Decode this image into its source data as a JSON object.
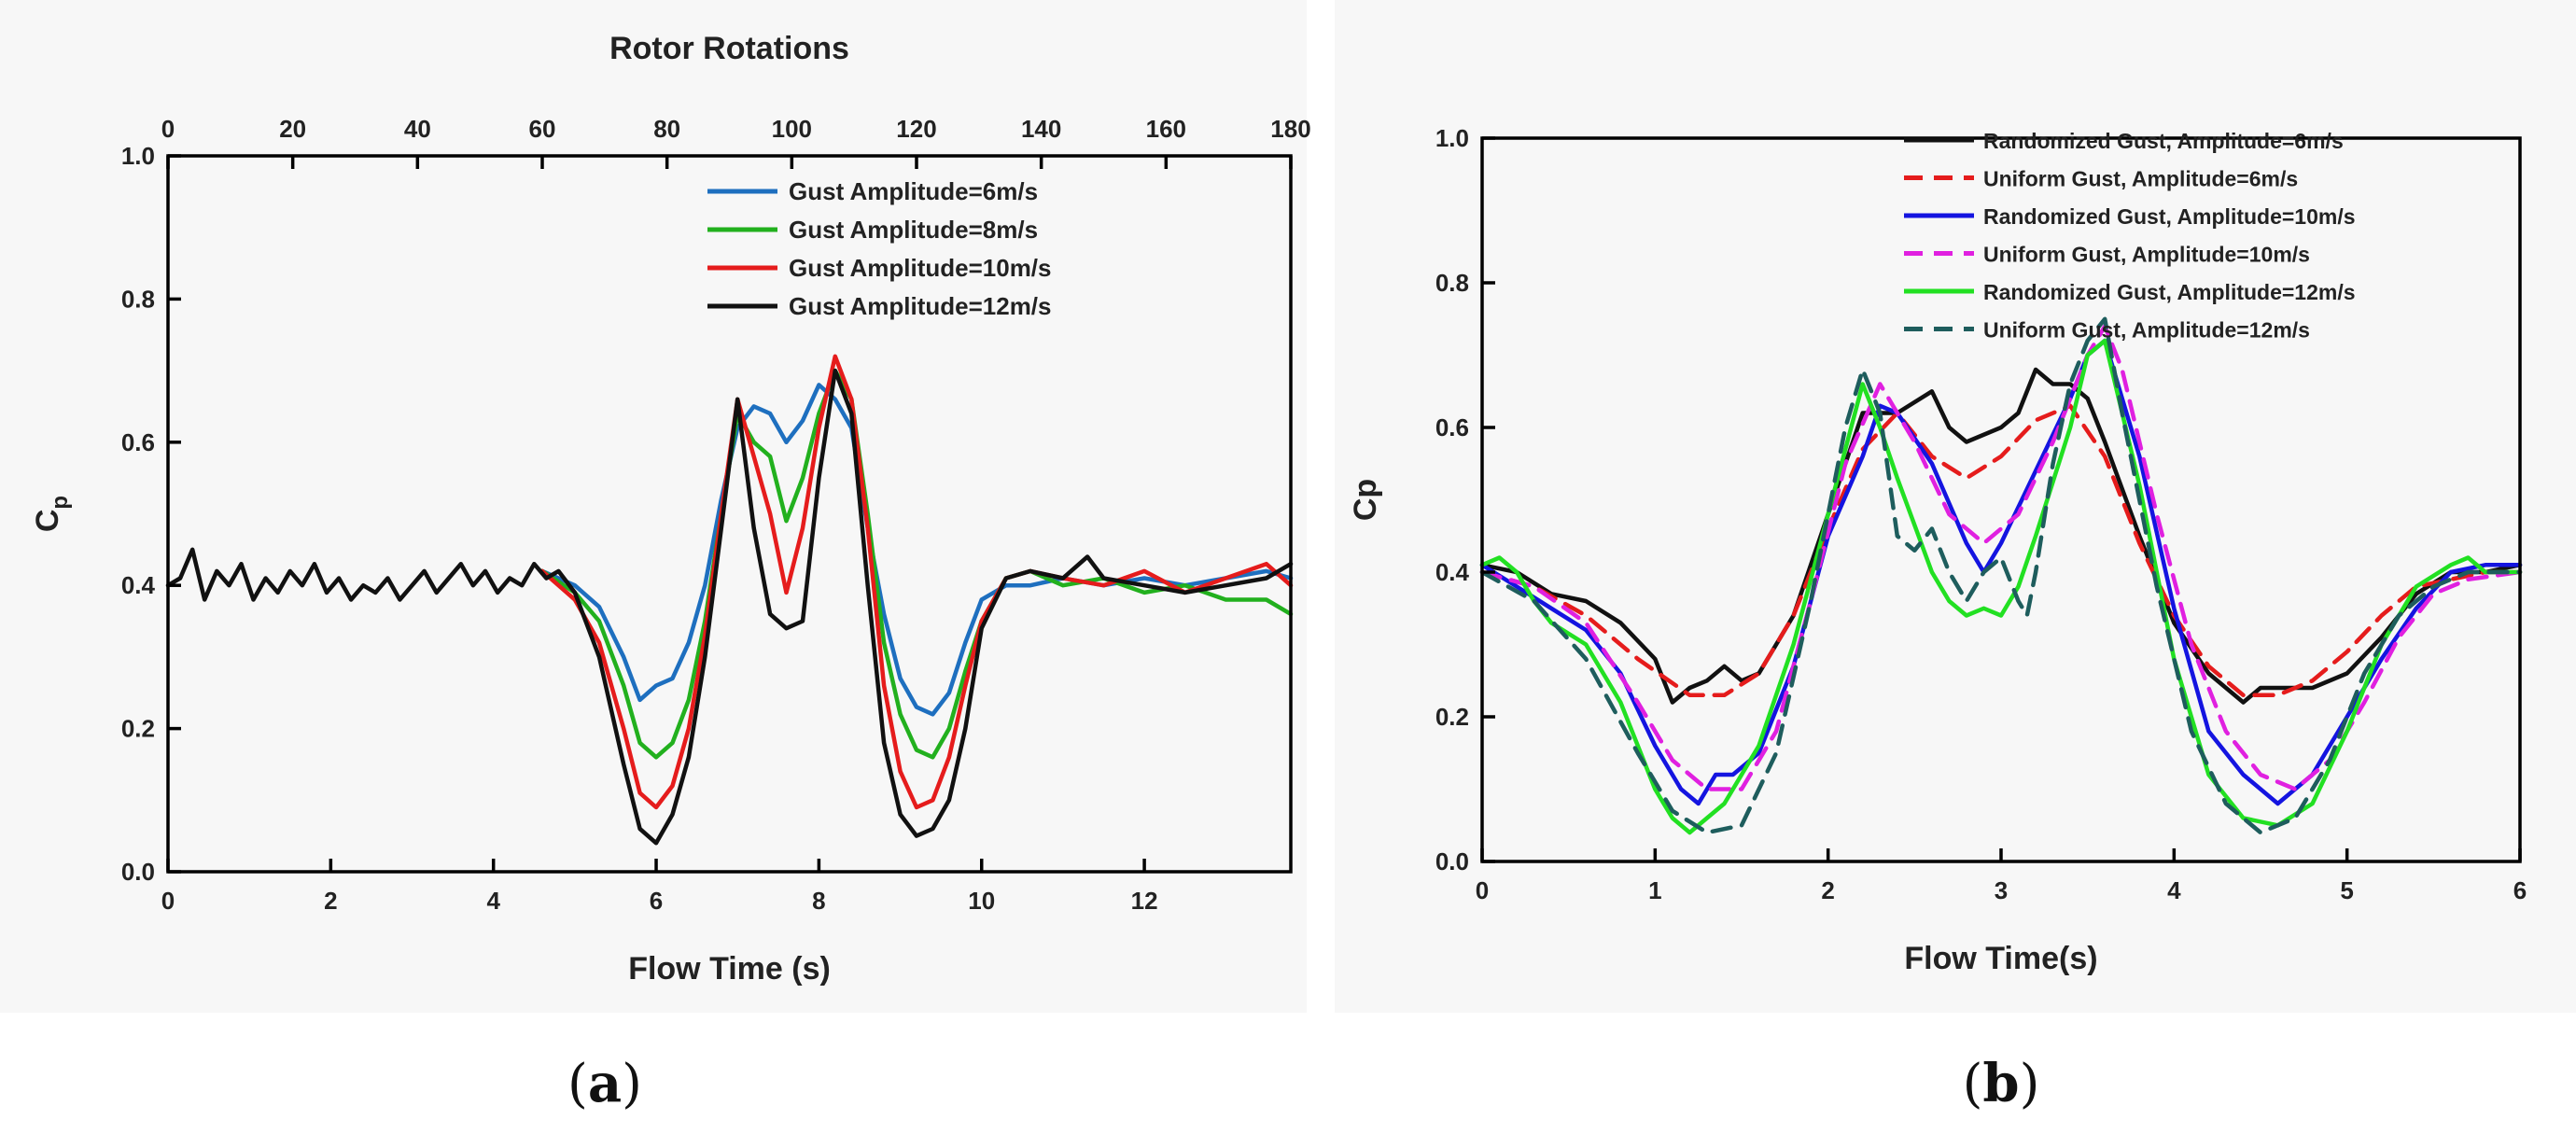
{
  "chart_data": [
    {
      "type": "line",
      "panel_label": "a",
      "title": "",
      "xlabel": "Flow Time (s)",
      "ylabel_main": "C",
      "ylabel_sub": "p",
      "x2label": "Rotor Rotations",
      "xlim": [
        0,
        13.8
      ],
      "ylim": [
        0,
        1.0
      ],
      "x2lim": [
        0,
        180
      ],
      "xticks": [
        0,
        2,
        4,
        6,
        8,
        10,
        12
      ],
      "yticks": [
        "0.0",
        "0.2",
        "0.4",
        "0.6",
        "0.8",
        "1.0"
      ],
      "x2ticks": [
        0,
        20,
        40,
        60,
        80,
        100,
        120,
        140,
        160,
        180
      ],
      "legend_position": "top-right",
      "series": [
        {
          "name": "Gust Amplitude=6m/s",
          "color": "#1e6fbf",
          "dash": "solid",
          "x": [
            4.6,
            5.0,
            5.3,
            5.6,
            5.8,
            6.0,
            6.2,
            6.4,
            6.6,
            6.8,
            7.0,
            7.2,
            7.4,
            7.6,
            7.8,
            8.0,
            8.2,
            8.4,
            8.6,
            8.8,
            9.0,
            9.2,
            9.4,
            9.6,
            9.8,
            10.0,
            10.3,
            10.6,
            11.0,
            11.5,
            12.0,
            12.5,
            13.0,
            13.5,
            13.8
          ],
          "y": [
            0.42,
            0.4,
            0.37,
            0.3,
            0.24,
            0.26,
            0.27,
            0.32,
            0.4,
            0.52,
            0.62,
            0.65,
            0.64,
            0.6,
            0.63,
            0.68,
            0.66,
            0.62,
            0.48,
            0.36,
            0.27,
            0.23,
            0.22,
            0.25,
            0.32,
            0.38,
            0.4,
            0.4,
            0.41,
            0.4,
            0.41,
            0.4,
            0.41,
            0.42,
            0.41
          ]
        },
        {
          "name": "Gust Amplitude=8m/s",
          "color": "#22b01e",
          "dash": "solid",
          "x": [
            4.6,
            5.0,
            5.3,
            5.6,
            5.8,
            6.0,
            6.2,
            6.4,
            6.6,
            6.8,
            7.0,
            7.2,
            7.4,
            7.6,
            7.8,
            8.0,
            8.2,
            8.4,
            8.6,
            8.8,
            9.0,
            9.2,
            9.4,
            9.6,
            9.8,
            10.0,
            10.3,
            10.6,
            11.0,
            11.5,
            12.0,
            12.5,
            13.0,
            13.5,
            13.8
          ],
          "y": [
            0.42,
            0.39,
            0.35,
            0.26,
            0.18,
            0.16,
            0.18,
            0.24,
            0.35,
            0.5,
            0.64,
            0.6,
            0.58,
            0.49,
            0.55,
            0.64,
            0.7,
            0.66,
            0.5,
            0.32,
            0.22,
            0.17,
            0.16,
            0.2,
            0.28,
            0.35,
            0.41,
            0.42,
            0.4,
            0.41,
            0.39,
            0.4,
            0.38,
            0.38,
            0.36
          ]
        },
        {
          "name": "Gust Amplitude=10m/s",
          "color": "#e51c1c",
          "dash": "solid",
          "x": [
            4.6,
            5.0,
            5.3,
            5.6,
            5.8,
            6.0,
            6.2,
            6.4,
            6.6,
            6.8,
            7.0,
            7.2,
            7.4,
            7.6,
            7.8,
            8.0,
            8.2,
            8.4,
            8.6,
            8.8,
            9.0,
            9.2,
            9.4,
            9.6,
            9.8,
            10.0,
            10.3,
            10.6,
            11.0,
            11.5,
            12.0,
            12.5,
            13.0,
            13.5,
            13.8
          ],
          "y": [
            0.42,
            0.38,
            0.32,
            0.2,
            0.11,
            0.09,
            0.12,
            0.2,
            0.33,
            0.5,
            0.66,
            0.58,
            0.5,
            0.39,
            0.48,
            0.62,
            0.72,
            0.66,
            0.48,
            0.26,
            0.14,
            0.09,
            0.1,
            0.16,
            0.26,
            0.35,
            0.41,
            0.42,
            0.41,
            0.4,
            0.42,
            0.39,
            0.41,
            0.43,
            0.4
          ]
        },
        {
          "name": "Gust Amplitude=12m/s",
          "color": "#111111",
          "dash": "solid",
          "x": [
            0.0,
            0.15,
            0.3,
            0.45,
            0.6,
            0.75,
            0.9,
            1.05,
            1.2,
            1.35,
            1.5,
            1.65,
            1.8,
            1.95,
            2.1,
            2.25,
            2.4,
            2.55,
            2.7,
            2.85,
            3.0,
            3.15,
            3.3,
            3.45,
            3.6,
            3.75,
            3.9,
            4.05,
            4.2,
            4.35,
            4.5,
            4.65,
            4.8,
            5.0,
            5.3,
            5.6,
            5.8,
            6.0,
            6.2,
            6.4,
            6.6,
            6.8,
            7.0,
            7.2,
            7.4,
            7.6,
            7.8,
            8.0,
            8.2,
            8.4,
            8.6,
            8.8,
            9.0,
            9.2,
            9.4,
            9.6,
            9.8,
            10.0,
            10.3,
            10.6,
            11.0,
            11.3,
            11.5,
            12.0,
            12.5,
            13.0,
            13.5,
            13.8
          ],
          "y": [
            0.4,
            0.41,
            0.45,
            0.38,
            0.42,
            0.4,
            0.43,
            0.38,
            0.41,
            0.39,
            0.42,
            0.4,
            0.43,
            0.39,
            0.41,
            0.38,
            0.4,
            0.39,
            0.41,
            0.38,
            0.4,
            0.42,
            0.39,
            0.41,
            0.43,
            0.4,
            0.42,
            0.39,
            0.41,
            0.4,
            0.43,
            0.41,
            0.42,
            0.39,
            0.3,
            0.15,
            0.06,
            0.04,
            0.08,
            0.16,
            0.3,
            0.48,
            0.66,
            0.48,
            0.36,
            0.34,
            0.35,
            0.55,
            0.7,
            0.64,
            0.4,
            0.18,
            0.08,
            0.05,
            0.06,
            0.1,
            0.2,
            0.34,
            0.41,
            0.42,
            0.41,
            0.44,
            0.41,
            0.4,
            0.39,
            0.4,
            0.41,
            0.43
          ]
        }
      ]
    },
    {
      "type": "line",
      "panel_label": "b",
      "title": "",
      "xlabel": "Flow Time(s)",
      "ylabel_main": "Cp",
      "xlim": [
        0,
        6
      ],
      "ylim": [
        0,
        1.0
      ],
      "xticks": [
        0,
        1,
        2,
        3,
        4,
        5,
        6
      ],
      "yticks": [
        "0.0",
        "0.2",
        "0.4",
        "0.6",
        "0.8",
        "1.0"
      ],
      "legend_position": "top-right",
      "series": [
        {
          "name": "Randomized Gust, Amplitude=6m/s",
          "color": "#111111",
          "dash": "solid",
          "x": [
            0.0,
            0.2,
            0.4,
            0.6,
            0.8,
            1.0,
            1.1,
            1.2,
            1.3,
            1.4,
            1.5,
            1.6,
            1.8,
            2.0,
            2.2,
            2.4,
            2.6,
            2.7,
            2.8,
            3.0,
            3.1,
            3.2,
            3.3,
            3.4,
            3.5,
            3.6,
            3.8,
            4.0,
            4.2,
            4.4,
            4.5,
            4.6,
            4.8,
            5.0,
            5.2,
            5.4,
            5.6,
            5.8,
            6.0
          ],
          "y": [
            0.41,
            0.4,
            0.37,
            0.36,
            0.33,
            0.28,
            0.22,
            0.24,
            0.25,
            0.27,
            0.25,
            0.26,
            0.34,
            0.48,
            0.62,
            0.62,
            0.65,
            0.6,
            0.58,
            0.6,
            0.62,
            0.68,
            0.66,
            0.66,
            0.64,
            0.58,
            0.45,
            0.33,
            0.26,
            0.22,
            0.24,
            0.24,
            0.24,
            0.26,
            0.31,
            0.37,
            0.4,
            0.4,
            0.41
          ]
        },
        {
          "name": "Uniform Gust, Amplitude=6m/s",
          "color": "#e51c1c",
          "dash": "dashed",
          "x": [
            0.0,
            0.3,
            0.6,
            0.9,
            1.2,
            1.4,
            1.6,
            1.8,
            2.0,
            2.2,
            2.4,
            2.6,
            2.8,
            3.0,
            3.2,
            3.4,
            3.6,
            3.8,
            4.0,
            4.2,
            4.4,
            4.6,
            4.8,
            5.0,
            5.2,
            5.4,
            5.6,
            5.8,
            6.0
          ],
          "y": [
            0.4,
            0.38,
            0.34,
            0.28,
            0.23,
            0.23,
            0.26,
            0.34,
            0.46,
            0.57,
            0.62,
            0.56,
            0.53,
            0.56,
            0.61,
            0.63,
            0.56,
            0.44,
            0.34,
            0.27,
            0.23,
            0.23,
            0.25,
            0.29,
            0.34,
            0.38,
            0.39,
            0.4,
            0.4
          ]
        },
        {
          "name": "Randomized Gust, Amplitude=10m/s",
          "color": "#1414e0",
          "dash": "solid",
          "x": [
            0.0,
            0.2,
            0.4,
            0.6,
            0.8,
            1.0,
            1.15,
            1.25,
            1.35,
            1.45,
            1.6,
            1.8,
            2.0,
            2.2,
            2.3,
            2.4,
            2.6,
            2.8,
            2.9,
            3.0,
            3.2,
            3.4,
            3.5,
            3.6,
            3.8,
            4.0,
            4.2,
            4.4,
            4.6,
            4.8,
            5.0,
            5.2,
            5.4,
            5.6,
            5.8,
            6.0
          ],
          "y": [
            0.41,
            0.38,
            0.35,
            0.32,
            0.26,
            0.16,
            0.1,
            0.08,
            0.12,
            0.12,
            0.15,
            0.27,
            0.45,
            0.56,
            0.63,
            0.62,
            0.55,
            0.44,
            0.4,
            0.44,
            0.54,
            0.64,
            0.7,
            0.72,
            0.56,
            0.35,
            0.18,
            0.12,
            0.08,
            0.12,
            0.2,
            0.28,
            0.35,
            0.4,
            0.41,
            0.41
          ]
        },
        {
          "name": "Uniform Gust, Amplitude=10m/s",
          "color": "#e020e0",
          "dash": "dashed",
          "x": [
            0.0,
            0.3,
            0.6,
            0.9,
            1.1,
            1.3,
            1.5,
            1.7,
            1.9,
            2.1,
            2.3,
            2.5,
            2.7,
            2.9,
            3.1,
            3.3,
            3.5,
            3.6,
            3.7,
            3.9,
            4.1,
            4.3,
            4.5,
            4.7,
            4.9,
            5.1,
            5.3,
            5.5,
            5.7,
            6.0
          ],
          "y": [
            0.4,
            0.38,
            0.33,
            0.22,
            0.14,
            0.1,
            0.1,
            0.18,
            0.36,
            0.55,
            0.66,
            0.58,
            0.48,
            0.44,
            0.48,
            0.58,
            0.7,
            0.74,
            0.68,
            0.48,
            0.3,
            0.18,
            0.12,
            0.1,
            0.14,
            0.22,
            0.31,
            0.37,
            0.39,
            0.4
          ]
        },
        {
          "name": "Randomized Gust, Amplitude=12m/s",
          "color": "#22e022",
          "dash": "solid",
          "x": [
            0.0,
            0.1,
            0.2,
            0.3,
            0.4,
            0.6,
            0.8,
            1.0,
            1.1,
            1.2,
            1.3,
            1.4,
            1.6,
            1.8,
            2.0,
            2.2,
            2.3,
            2.4,
            2.6,
            2.7,
            2.8,
            2.9,
            3.0,
            3.1,
            3.2,
            3.4,
            3.5,
            3.6,
            3.8,
            4.0,
            4.2,
            4.4,
            4.6,
            4.8,
            5.0,
            5.2,
            5.4,
            5.6,
            5.7,
            5.8,
            6.0
          ],
          "y": [
            0.41,
            0.42,
            0.4,
            0.36,
            0.33,
            0.3,
            0.22,
            0.1,
            0.06,
            0.04,
            0.06,
            0.08,
            0.16,
            0.3,
            0.48,
            0.66,
            0.6,
            0.53,
            0.4,
            0.36,
            0.34,
            0.35,
            0.34,
            0.38,
            0.45,
            0.6,
            0.7,
            0.72,
            0.52,
            0.28,
            0.12,
            0.06,
            0.05,
            0.08,
            0.18,
            0.3,
            0.38,
            0.41,
            0.42,
            0.4,
            0.4
          ]
        },
        {
          "name": "Uniform Gust, Amplitude=12m/s",
          "color": "#1e5d5d",
          "dash": "dashed",
          "x": [
            0.0,
            0.3,
            0.6,
            0.9,
            1.1,
            1.3,
            1.5,
            1.7,
            1.9,
            2.1,
            2.2,
            2.3,
            2.4,
            2.5,
            2.6,
            2.7,
            2.8,
            2.9,
            3.0,
            3.1,
            3.15,
            3.2,
            3.3,
            3.4,
            3.5,
            3.6,
            3.7,
            3.9,
            4.1,
            4.3,
            4.5,
            4.7,
            4.9,
            5.1,
            5.3,
            5.5,
            5.7,
            6.0
          ],
          "y": [
            0.4,
            0.36,
            0.28,
            0.15,
            0.07,
            0.04,
            0.05,
            0.15,
            0.36,
            0.6,
            0.68,
            0.62,
            0.45,
            0.43,
            0.46,
            0.4,
            0.36,
            0.4,
            0.42,
            0.36,
            0.34,
            0.4,
            0.55,
            0.66,
            0.72,
            0.75,
            0.62,
            0.38,
            0.18,
            0.08,
            0.04,
            0.06,
            0.14,
            0.26,
            0.34,
            0.38,
            0.4,
            0.4
          ]
        }
      ]
    }
  ],
  "captions": {
    "a": "a",
    "b": "b",
    "open": "(",
    "close": ")"
  }
}
